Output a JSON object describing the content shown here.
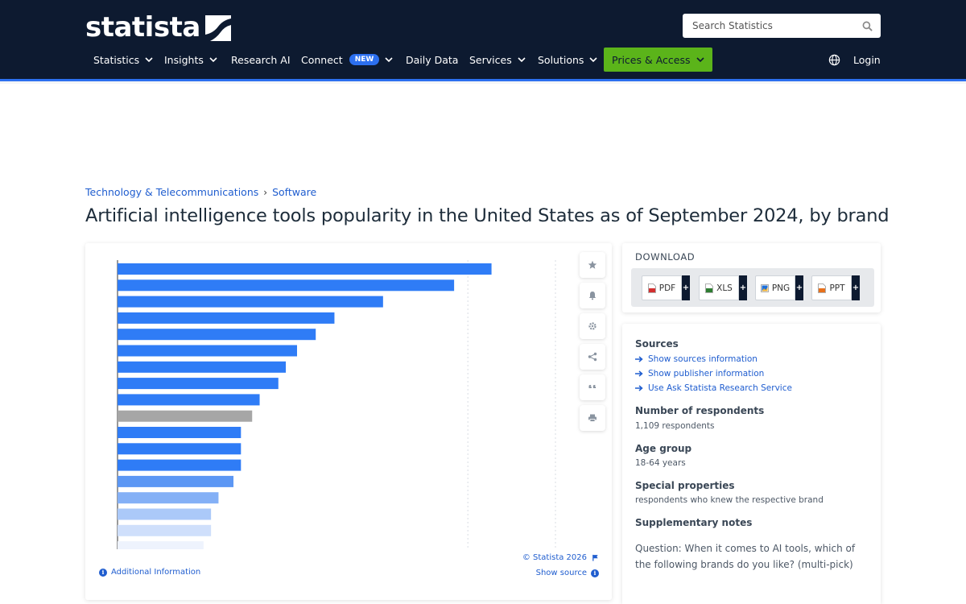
{
  "header": {
    "logo_text": "statista",
    "search_placeholder": "Search Statistics",
    "nav": [
      {
        "label": "Statistics",
        "has_dropdown": true
      },
      {
        "label": "Insights",
        "has_dropdown": true
      },
      {
        "label": "Research AI",
        "has_dropdown": false
      },
      {
        "label": "Connect",
        "badge": "NEW",
        "has_dropdown": true
      },
      {
        "label": "Daily Data",
        "has_dropdown": false
      },
      {
        "label": "Services",
        "has_dropdown": true
      },
      {
        "label": "Solutions",
        "has_dropdown": true
      },
      {
        "label": "Prices & Access",
        "has_dropdown": true
      }
    ],
    "login_label": "Login"
  },
  "breadcrumb": {
    "category": "Technology & Telecommunications",
    "separator": "›",
    "subcategory": "Software"
  },
  "page_title": "Artificial intelligence tools popularity in the United States as of September 2024, by brand",
  "chart_data": {
    "type": "bar",
    "orientation": "horizontal",
    "note": "category labels, axis and values not visible in screenshot; values estimated from bar lengths (relative scale, max bar = 100)",
    "values": [
      100,
      90,
      71,
      58,
      53,
      48,
      45,
      43,
      38,
      36,
      33,
      33,
      33,
      31,
      27,
      25,
      25,
      23
    ],
    "bar_styles": [
      "primary",
      "primary",
      "primary",
      "primary",
      "primary",
      "primary",
      "primary",
      "primary",
      "primary",
      "highlight",
      "primary",
      "primary",
      "primary",
      "fade1",
      "fade2",
      "fade3",
      "fade4",
      "fade5"
    ],
    "colors": {
      "primary": "#2f7cf6",
      "highlight": "#a6a6a6",
      "fade1": "#5c97f4",
      "fade2": "#84b0f6",
      "fade3": "#abc9f9",
      "fade4": "#cfdffb",
      "fade5": "#eef3fd"
    },
    "grid": true
  },
  "chart_card": {
    "copyright": "© Statista 2026",
    "show_source": "Show source",
    "additional_info": "Additional Information",
    "tools": [
      "star-icon",
      "bell-icon",
      "gear-icon",
      "share-icon",
      "quote-icon",
      "print-icon"
    ]
  },
  "download": {
    "title": "DOWNLOAD",
    "buttons": [
      {
        "label": "PDF",
        "color": "#d32f2f"
      },
      {
        "label": "XLS",
        "color": "#2e7d32"
      },
      {
        "label": "PNG",
        "color": "#1e6fd9"
      },
      {
        "label": "PPT",
        "color": "#e8711b"
      }
    ],
    "plus": "+"
  },
  "info": {
    "sources_heading": "Sources",
    "source_links": [
      "Show sources information",
      "Show publisher information",
      "Use Ask Statista Research Service"
    ],
    "respondents_heading": "Number of respondents",
    "respondents_value": "1,109 respondents",
    "age_heading": "Age group",
    "age_value": "18-64 years",
    "special_heading": "Special properties",
    "special_value": "respondents who knew the respective brand",
    "supp_heading": "Supplementary notes",
    "supp_question": "Question: When it comes to AI tools, which of the following brands do you like? (multi-pick)"
  }
}
